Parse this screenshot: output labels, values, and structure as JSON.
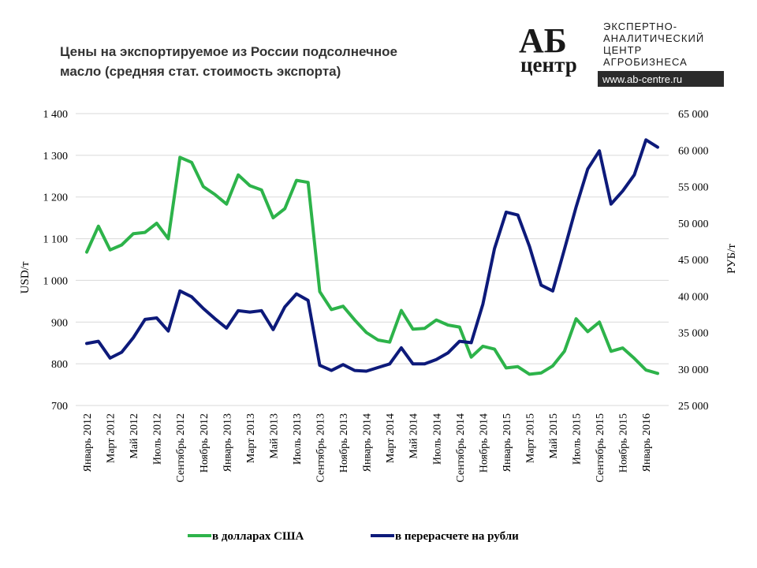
{
  "title_line1": "Цены на экспортируемое из России подсолнечное",
  "title_line2": "масло (средняя стат. стоимость экспорта)",
  "logo": {
    "mark_line1": "АБ",
    "mark_line2": "центр",
    "text_lines": [
      "ЭКСПЕРТНО-",
      "АНАЛИТИЧЕСКИЙ",
      "ЦЕНТР",
      "АГРОБИЗНЕСА"
    ],
    "url": "www.ab-centre.ru"
  },
  "colors": {
    "usd": "#2db34a",
    "rub": "#0d1a7a",
    "grid": "#d9d9d9"
  },
  "chart_data": {
    "type": "line",
    "ylabel_left": "USD/т",
    "ylabel_right": "РУБ/т",
    "ylim_left": [
      700,
      1400
    ],
    "ylim_right": [
      25000,
      65000
    ],
    "yticks_left": [
      "1 400",
      "1 300",
      "1 200",
      "1 100",
      "1 000",
      "900",
      "800",
      "700"
    ],
    "yticks_right": [
      "65 000",
      "60 000",
      "55 000",
      "50 000",
      "45 000",
      "40 000",
      "35 000",
      "30 000",
      "25 000"
    ],
    "grid": true,
    "legend_position": "bottom",
    "x_labels": [
      "Январь 2012",
      "Март 2012",
      "Май 2012",
      "Июль 2012",
      "Сентябрь 2012",
      "Ноябрь 2012",
      "Январь 2013",
      "Март 2013",
      "Май 2013",
      "Июль 2013",
      "Сентябрь 2013",
      "Ноябрь 2013",
      "Январь 2014",
      "Март 2014",
      "Май 2014",
      "Июль 2014",
      "Сентябрь 2014",
      "Ноябрь 2014",
      "Январь 2015",
      "Март 2015",
      "Май 2015",
      "Июль 2015",
      "Сентябрь 2015",
      "Ноябрь 2015",
      "Январь 2016"
    ],
    "series": [
      {
        "name": "в долларах США",
        "axis": "left",
        "values": [
          1068,
          1130,
          1073,
          1085,
          1112,
          1115,
          1137,
          1100,
          1295,
          1283,
          1225,
          1206,
          1183,
          1253,
          1227,
          1217,
          1150,
          1172,
          1240,
          1235,
          973,
          930,
          938,
          905,
          875,
          857,
          852,
          928,
          883,
          885,
          905,
          893,
          888,
          816,
          842,
          835,
          790,
          793,
          775,
          778,
          795,
          830,
          908,
          877,
          900,
          830,
          838,
          813,
          785,
          777
        ]
      },
      {
        "name": "в перерасчете на рубли",
        "axis": "right",
        "values": [
          33500,
          33800,
          31500,
          32300,
          34300,
          36800,
          37000,
          35200,
          40700,
          39900,
          38300,
          36900,
          35600,
          38000,
          37800,
          38000,
          35400,
          38500,
          40300,
          39400,
          30500,
          29800,
          30600,
          29800,
          29700,
          30200,
          30700,
          32900,
          30700,
          30700,
          31300,
          32200,
          33800,
          33600,
          38900,
          46500,
          51500,
          51100,
          46800,
          41500,
          40700,
          46400,
          52200,
          57400,
          59900,
          52600,
          54400,
          56600,
          61400,
          60400
        ]
      }
    ]
  }
}
